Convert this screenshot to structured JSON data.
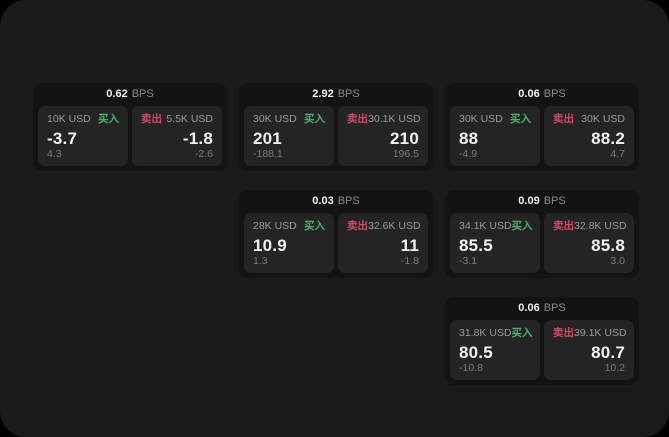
{
  "labels": {
    "bps": "BPS",
    "buy": "买入",
    "sell": "卖出"
  },
  "colors": {
    "page_bg": "#000000",
    "surface_bg": "#1a1a1a",
    "card_bg": "#131313",
    "pane_bg": "#242424",
    "buy_green": "#45b36e",
    "sell_red": "#d04a67",
    "text_primary": "#f2f2f2",
    "text_secondary": "#9a9a9a",
    "text_muted": "#7b7b7b"
  },
  "cards": [
    {
      "bps": "0.62",
      "buy": {
        "amount": "10K USD",
        "value": "-3.7",
        "sub": "4.3"
      },
      "sell": {
        "amount": "5.5K USD",
        "value": "-1.8",
        "sub": "-2.6"
      }
    },
    {
      "bps": "2.92",
      "buy": {
        "amount": "30K USD",
        "value": "201",
        "sub": "-188.1"
      },
      "sell": {
        "amount": "30.1K USD",
        "value": "210",
        "sub": "196.5"
      }
    },
    {
      "bps": "0.06",
      "buy": {
        "amount": "30K USD",
        "value": "88",
        "sub": "-4.9"
      },
      "sell": {
        "amount": "30K USD",
        "value": "88.2",
        "sub": "4.7"
      }
    },
    {
      "bps": "0.03",
      "buy": {
        "amount": "28K USD",
        "value": "10.9",
        "sub": "1.3"
      },
      "sell": {
        "amount": "32.6K USD",
        "value": "11",
        "sub": "-1.8"
      }
    },
    {
      "bps": "0.09",
      "buy": {
        "amount": "34.1K USD",
        "value": "85.5",
        "sub": "-3.1"
      },
      "sell": {
        "amount": "32.8K USD",
        "value": "85.8",
        "sub": "3.0"
      }
    },
    {
      "bps": "0.06",
      "buy": {
        "amount": "31.8K USD",
        "value": "80.5",
        "sub": "-10.8"
      },
      "sell": {
        "amount": "39.1K USD",
        "value": "80.7",
        "sub": "10.2"
      }
    }
  ]
}
